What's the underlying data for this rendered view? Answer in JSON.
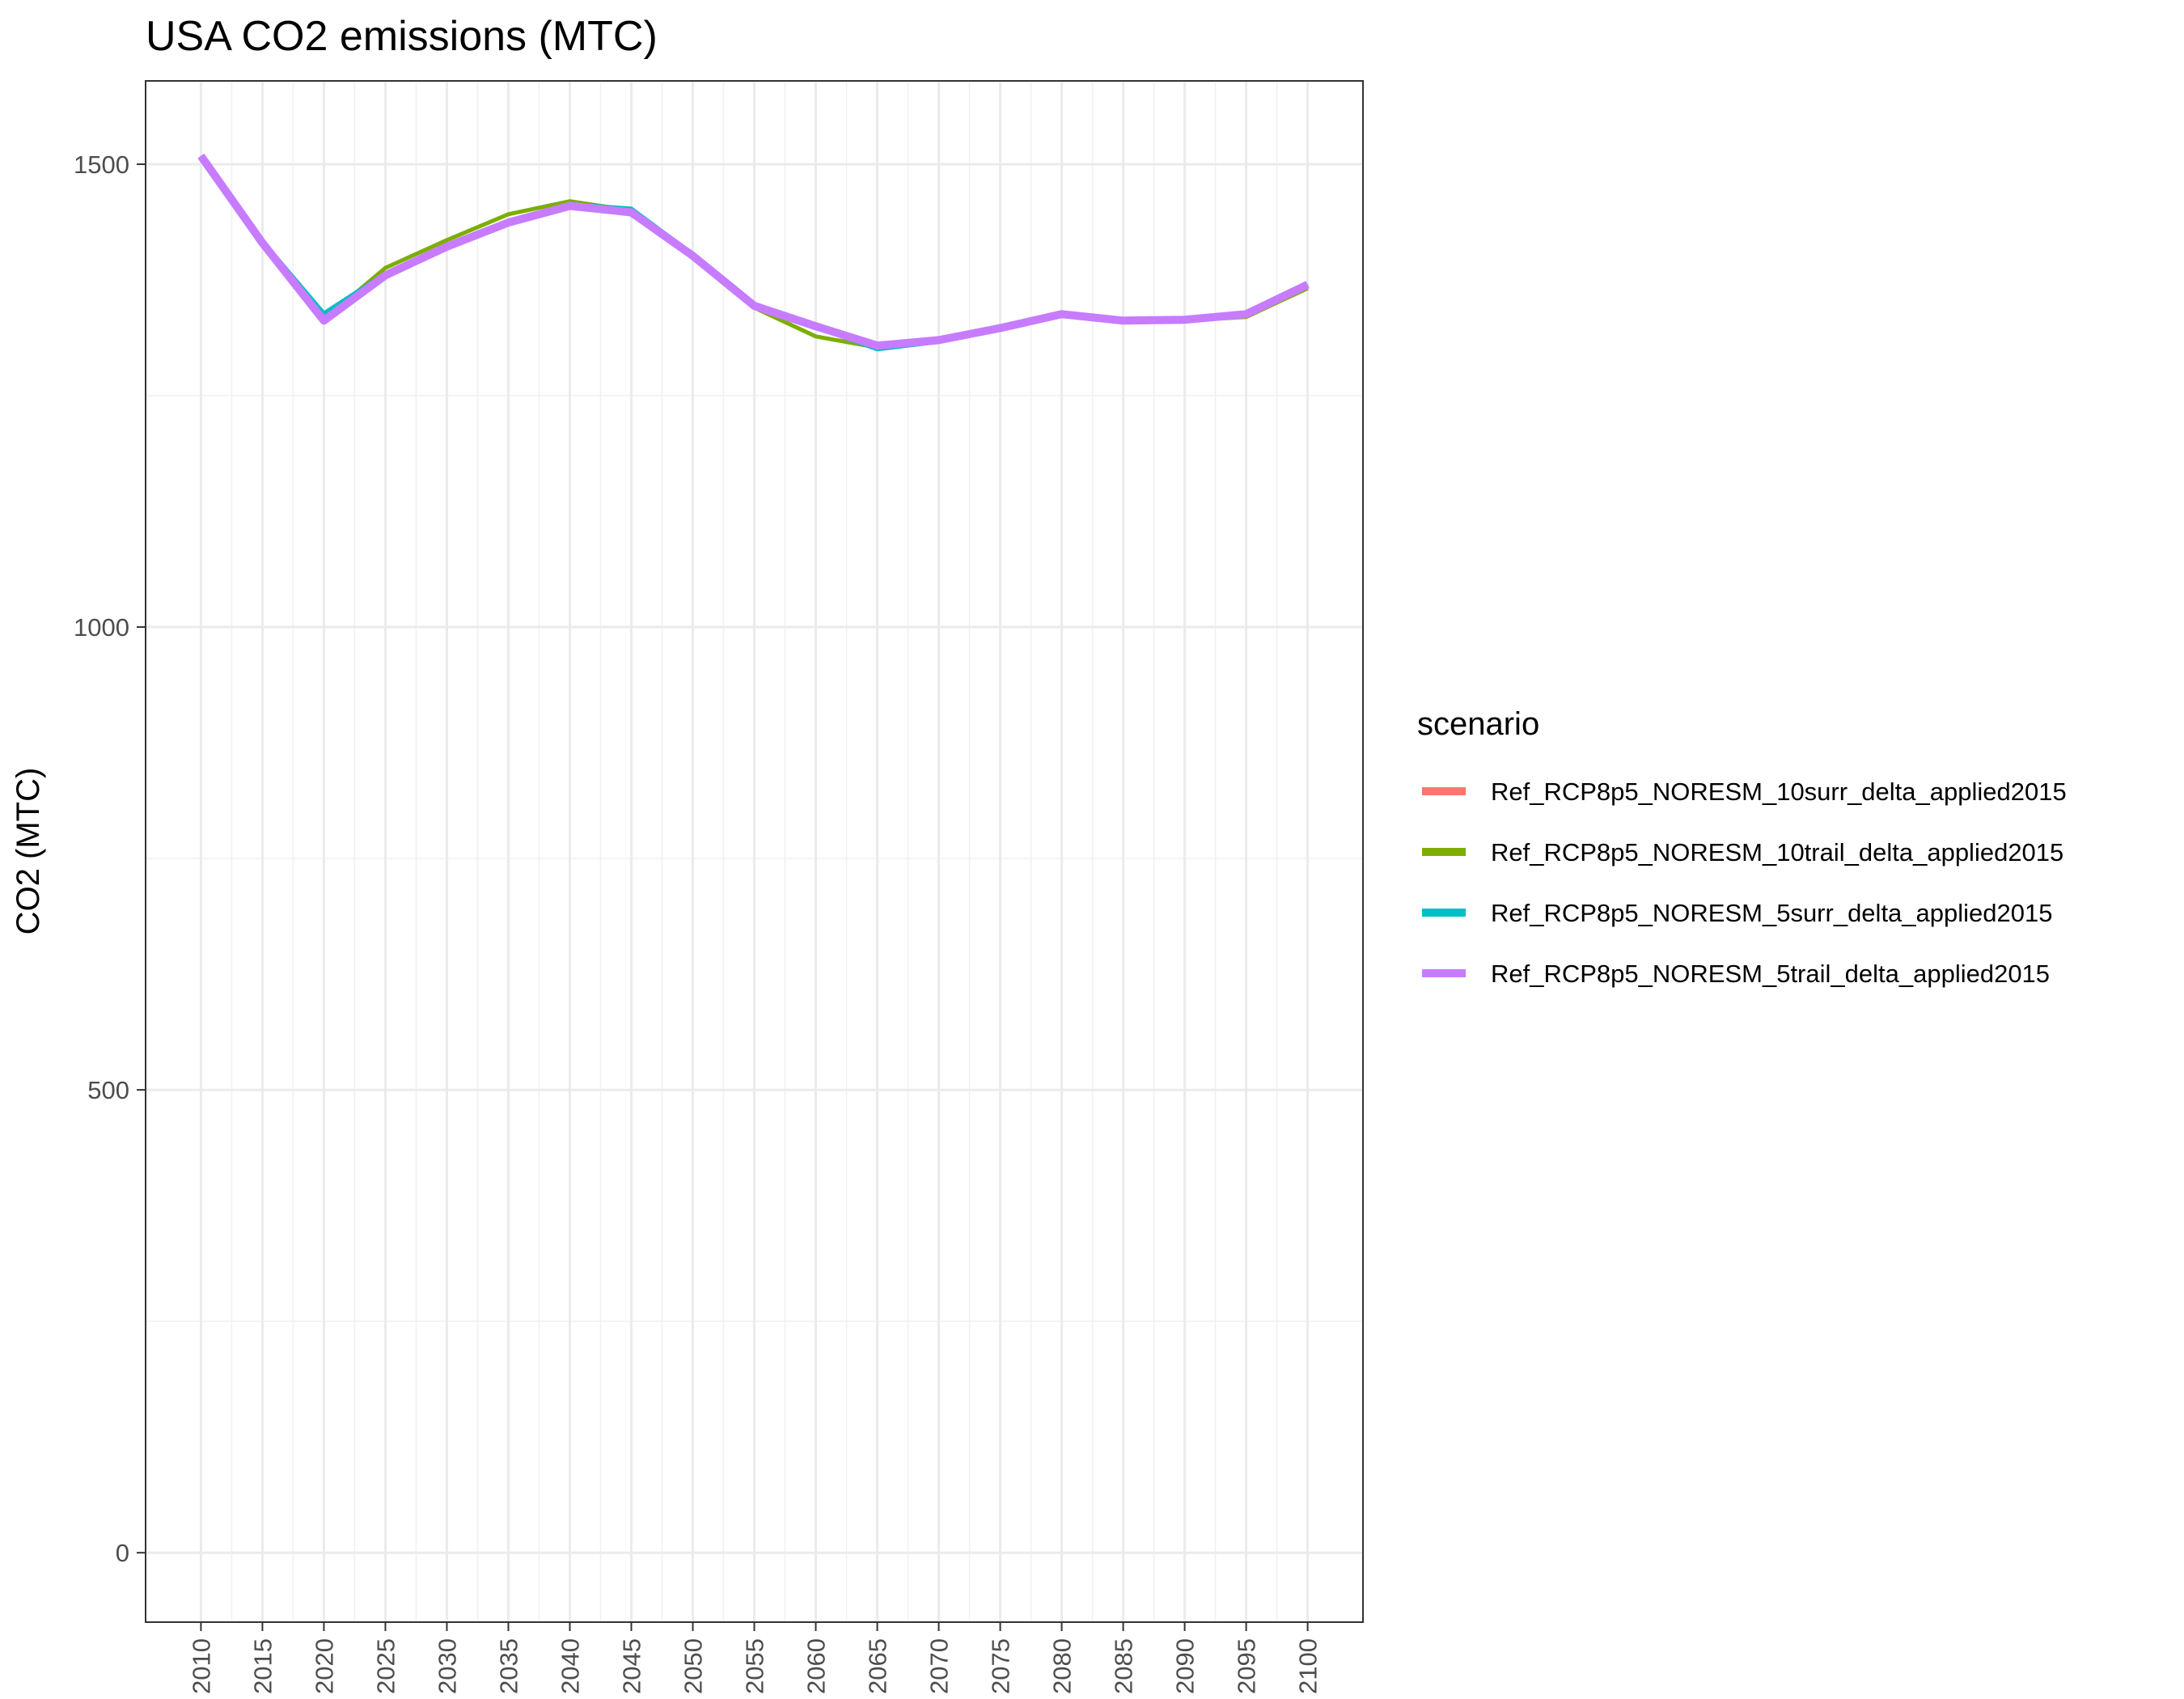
{
  "chart_data": {
    "type": "line",
    "title": "USA CO2 emissions (MTC)",
    "xlabel": "",
    "ylabel": "CO2 (MTC)",
    "x": [
      2010,
      2015,
      2020,
      2025,
      2030,
      2035,
      2040,
      2045,
      2050,
      2055,
      2060,
      2065,
      2070,
      2075,
      2080,
      2085,
      2090,
      2095,
      2100
    ],
    "x_tick_labels": [
      "2010",
      "2015",
      "2020",
      "2025",
      "2030",
      "2035",
      "2040",
      "2045",
      "2050",
      "2055",
      "2060",
      "2065",
      "2070",
      "2075",
      "2080",
      "2085",
      "2090",
      "2095",
      "2100"
    ],
    "y_ticks": [
      0,
      500,
      1000,
      1500
    ],
    "y_tick_labels": [
      "0",
      "500",
      "1000",
      "1500"
    ],
    "xlim": [
      2005.5,
      2104.5
    ],
    "ylim": [
      -75,
      1590
    ],
    "grid": true,
    "legend": {
      "title": "scenario",
      "position": "right"
    },
    "series": [
      {
        "name": "Ref_RCP8p5_NORESM_10surr_delta_applied2015",
        "color": "#F8766D",
        "values": [
          1509,
          1415,
          1332,
          1380,
          1410,
          1437,
          1454,
          1448,
          1401,
          1347,
          1325,
          1305,
          1311,
          1324,
          1338,
          1330,
          1331,
          1337,
          1370
        ]
      },
      {
        "name": "Ref_RCP8p5_NORESM_10trail_delta_applied2015",
        "color": "#7CAE00",
        "values": [
          1509,
          1415,
          1332,
          1388,
          1418,
          1446,
          1460,
          1450,
          1402,
          1345,
          1314,
          1302,
          1309,
          1322,
          1336,
          1330,
          1331,
          1335,
          1366
        ]
      },
      {
        "name": "Ref_RCP8p5_NORESM_5surr_delta_applied2015",
        "color": "#00BFC4",
        "values": [
          1509,
          1417,
          1339,
          1382,
          1412,
          1439,
          1457,
          1452,
          1403,
          1346,
          1324,
          1300,
          1308,
          1322,
          1336,
          1331,
          1332,
          1339,
          1370
        ]
      },
      {
        "name": "Ref_RCP8p5_NORESM_5trail_delta_applied2015",
        "color": "#C77CFF",
        "values": [
          1509,
          1415,
          1331,
          1380,
          1411,
          1437,
          1455,
          1448,
          1401,
          1347,
          1325,
          1304,
          1310,
          1323,
          1338,
          1331,
          1332,
          1338,
          1370
        ]
      }
    ]
  }
}
